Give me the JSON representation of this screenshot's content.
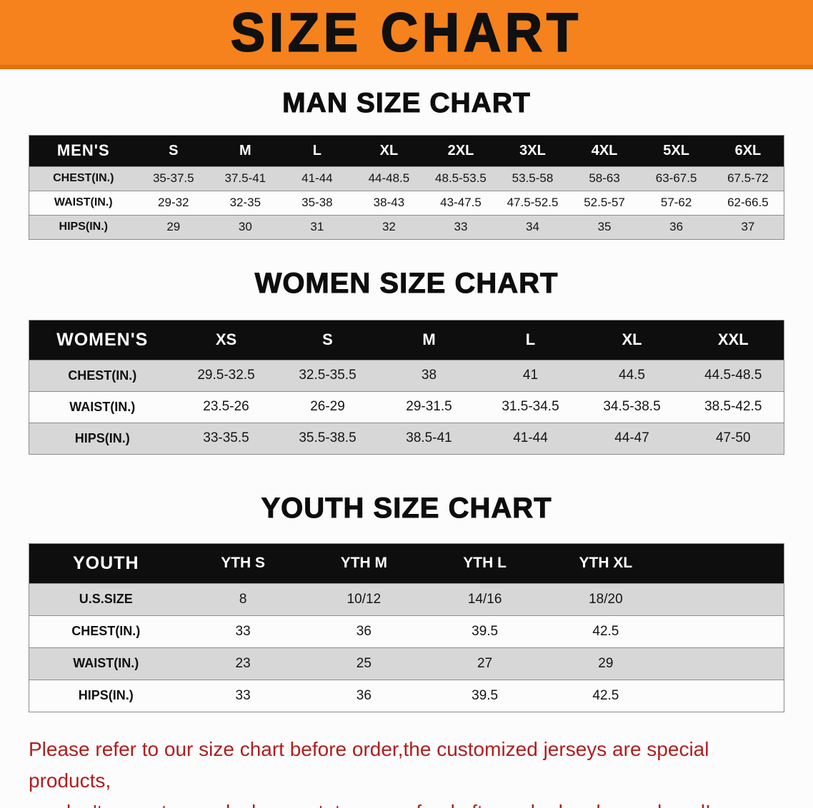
{
  "banner": {
    "title": "SIZE CHART"
  },
  "colors": {
    "banner_bg": "#f5821c",
    "banner_text": "#101010",
    "page_bg": "#fcfcfc",
    "text": "#141414",
    "header_bg": "#0e0e0e",
    "header_text": "#ffffff",
    "row_alt_bg": "#d7d7d7",
    "row_line": "#8c8c8c",
    "note_text": "#b01e1e"
  },
  "chart_data": [
    {
      "type": "table",
      "id": "men",
      "title": "MAN SIZE CHART",
      "corner_label": "MEN'S",
      "columns": [
        "S",
        "M",
        "L",
        "XL",
        "2XL",
        "3XL",
        "4XL",
        "5XL",
        "6XL"
      ],
      "rows": [
        {
          "label": "CHEST(IN.)",
          "values": [
            "35-37.5",
            "37.5-41",
            "41-44",
            "44-48.5",
            "48.5-53.5",
            "53.5-58",
            "58-63",
            "63-67.5",
            "67.5-72"
          ]
        },
        {
          "label": "WAIST(IN.)",
          "values": [
            "29-32",
            "32-35",
            "35-38",
            "38-43",
            "43-47.5",
            "47.5-52.5",
            "52.5-57",
            "57-62",
            "62-66.5"
          ]
        },
        {
          "label": "HIPS(IN.)",
          "values": [
            "29",
            "30",
            "31",
            "32",
            "33",
            "34",
            "35",
            "36",
            "37"
          ]
        }
      ]
    },
    {
      "type": "table",
      "id": "women",
      "title": "WOMEN SIZE CHART",
      "corner_label": "WOMEN'S",
      "columns": [
        "XS",
        "S",
        "M",
        "L",
        "XL",
        "XXL"
      ],
      "rows": [
        {
          "label": "CHEST(IN.)",
          "values": [
            "29.5-32.5",
            "32.5-35.5",
            "38",
            "41",
            "44.5",
            "44.5-48.5"
          ]
        },
        {
          "label": "WAIST(IN.)",
          "values": [
            "23.5-26",
            "26-29",
            "29-31.5",
            "31.5-34.5",
            "34.5-38.5",
            "38.5-42.5"
          ]
        },
        {
          "label": "HIPS(IN.)",
          "values": [
            "33-35.5",
            "35.5-38.5",
            "38.5-41",
            "41-44",
            "44-47",
            "47-50"
          ]
        }
      ]
    },
    {
      "type": "table",
      "id": "youth",
      "title": "YOUTH SIZE CHART",
      "corner_label": "YOUTH",
      "columns": [
        "YTH S",
        "YTH M",
        "YTH L",
        "YTH XL"
      ],
      "rows": [
        {
          "label": "U.S.SIZE",
          "values": [
            "8",
            "10/12",
            "14/16",
            "18/20"
          ]
        },
        {
          "label": "CHEST(IN.)",
          "values": [
            "33",
            "36",
            "39.5",
            "42.5"
          ]
        },
        {
          "label": "WAIST(IN.)",
          "values": [
            "23",
            "25",
            "27",
            "29"
          ]
        },
        {
          "label": "HIPS(IN.)",
          "values": [
            "33",
            "36",
            "39.5",
            "42.5"
          ]
        }
      ]
    }
  ],
  "note": {
    "lines": [
      "Please refer to our size chart before order,the customized jerseys are special products,",
      "we don't accept cancel, change, teturn or refund after order has been placed!"
    ]
  }
}
